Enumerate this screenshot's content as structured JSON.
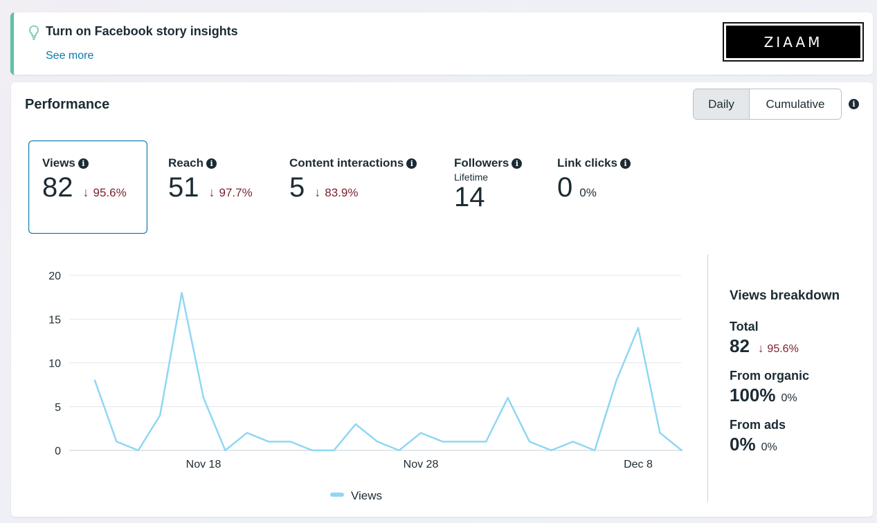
{
  "banner": {
    "title": "Turn on Facebook story insights",
    "see_more": "See more",
    "icon": "lightbulb-icon",
    "accent": "#5fc1a8"
  },
  "logo": {
    "text": "ZIAAM"
  },
  "performance": {
    "title": "Performance",
    "toggle": {
      "daily": "Daily",
      "cumulative": "Cumulative",
      "selected": "Daily"
    }
  },
  "metrics": [
    {
      "label": "Views",
      "value": "82",
      "change": "95.6%",
      "direction": "down",
      "selected": true
    },
    {
      "label": "Reach",
      "value": "51",
      "change": "97.7%",
      "direction": "down"
    },
    {
      "label": "Content interactions",
      "value": "5",
      "change": "83.9%",
      "direction": "down"
    },
    {
      "label": "Followers",
      "sublabel": "Lifetime",
      "value": "14"
    },
    {
      "label": "Link clicks",
      "value": "0",
      "change": "0%",
      "direction": "none"
    }
  ],
  "chart_data": {
    "type": "line",
    "title": "",
    "xlabel": "",
    "ylabel": "",
    "ylim": [
      0,
      20
    ],
    "yticks": [
      0,
      5,
      10,
      15,
      20
    ],
    "xtick_labels": [
      {
        "index": 5,
        "label": "Nov 18"
      },
      {
        "index": 15,
        "label": "Nov 28"
      },
      {
        "index": 25,
        "label": "Dec 8"
      }
    ],
    "grid": true,
    "legend_position": "bottom",
    "series": [
      {
        "name": "Views",
        "color": "#8fd7f3",
        "values": [
          8,
          1,
          0,
          4,
          18,
          6,
          0,
          2,
          1,
          1,
          0,
          0,
          3,
          1,
          0,
          2,
          1,
          1,
          1,
          6,
          1,
          0,
          1,
          0,
          8,
          14,
          2,
          0
        ]
      }
    ]
  },
  "breakdown": {
    "title": "Views breakdown",
    "total_label": "Total",
    "total_value": "82",
    "total_change": "95.6%",
    "organic_label": "From organic",
    "organic_value": "100%",
    "organic_change": "0%",
    "ads_label": "From ads",
    "ads_value": "0%",
    "ads_change": "0%"
  },
  "colors": {
    "decrease": "#7a1f2b",
    "link": "#0a78a9",
    "selected_border": "#0a78a9"
  }
}
